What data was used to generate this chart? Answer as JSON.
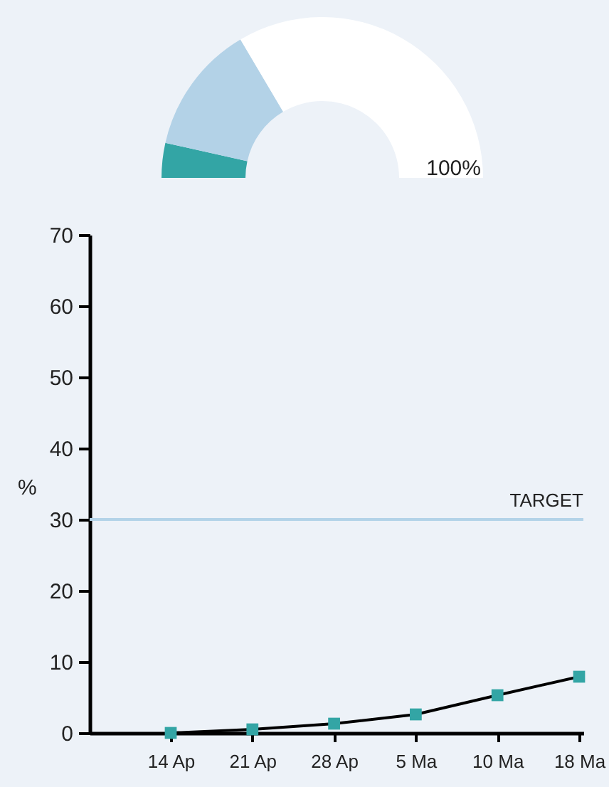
{
  "chart_data": [
    {
      "type": "donut",
      "categories": [
        null,
        null,
        null
      ],
      "values": [
        7,
        26,
        67
      ],
      "colors": [
        "#33a5a5",
        "#b3d2e7",
        "#ffffff"
      ],
      "annotations": [
        "100%"
      ]
    },
    {
      "type": "line",
      "categories": [
        "14 Ap",
        "21 Ap",
        "28 Ap",
        "5 Ma",
        "10 Ma",
        "18 Ma"
      ],
      "ylabel": "%",
      "ylim": [
        0,
        70
      ],
      "yticks": [
        0,
        10,
        20,
        30,
        40,
        50,
        60,
        70
      ],
      "series": [
        {
          "type": "line",
          "marker": "none",
          "color": "#000000",
          "values": [
            0,
            0.5,
            1.3,
            2.6,
            5.3,
            7.9
          ]
        },
        {
          "type": "scatter",
          "color": "#33a5a5",
          "values": [
            0,
            0.5,
            1.3,
            2.6,
            5.3,
            7.9
          ]
        }
      ],
      "marker": "square",
      "ref_lines": [
        {
          "axis": "y",
          "value": 30,
          "label": "TARGET",
          "color": "#b3d3e8"
        }
      ]
    }
  ]
}
